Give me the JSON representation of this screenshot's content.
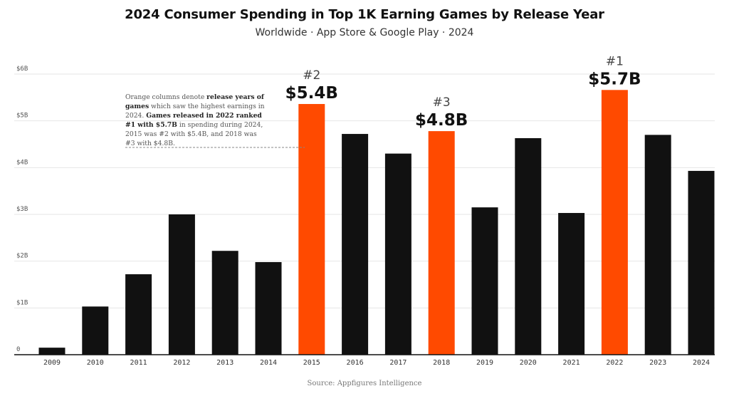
{
  "header": {
    "title": "2024 Consumer Spending in Top 1K Earning Games by Release Year",
    "subtitle": "Worldwide · App Store & Google Play · 2024"
  },
  "annotation": {
    "part1": "Orange columns denote ",
    "part2_bold": "release years of games",
    "part3": " which saw the highest earnings in 2024. ",
    "part4_bold": "Games released in 2022 ranked #1 with $5.7B",
    "part5": " in spending during 2024, 2015 was #2 with $5.4B, and 2018 was #3 with $4.8B."
  },
  "footer": {
    "source": "Source: Appfigures Intelligence"
  },
  "colors": {
    "default_bar": "#111111",
    "highlight_bar": "#ff4a00",
    "grid": "#e6e6e6",
    "axis": "#111111"
  },
  "chart_data": {
    "type": "bar",
    "title": "2024 Consumer Spending in Top 1K Earning Games by Release Year",
    "subtitle": "Worldwide · App Store & Google Play · 2024",
    "xlabel": "",
    "ylabel": "",
    "categories": [
      "2009",
      "2010",
      "2011",
      "2012",
      "2013",
      "2014",
      "2015",
      "2016",
      "2017",
      "2018",
      "2019",
      "2020",
      "2021",
      "2022",
      "2023",
      "2024"
    ],
    "series": [
      {
        "values": [
          0.15,
          1.03,
          1.72,
          3.0,
          2.22,
          1.98,
          5.36,
          4.72,
          4.3,
          4.78,
          3.15,
          4.63,
          3.03,
          5.66,
          4.7,
          3.93
        ]
      }
    ],
    "units": "USD billions",
    "ylim": [
      0,
      6
    ],
    "yticks": [
      0,
      1,
      2,
      3,
      4,
      5,
      6
    ],
    "ytick_labels": [
      "0",
      "$1B",
      "$2B",
      "$3B",
      "$4B",
      "$5B",
      "$6B"
    ],
    "grid": true,
    "legend": "none",
    "highlights": [
      {
        "category": "2022",
        "rank": "#1",
        "label": "$5.7B"
      },
      {
        "category": "2015",
        "rank": "#2",
        "label": "$5.4B"
      },
      {
        "category": "2018",
        "rank": "#3",
        "label": "$4.8B"
      }
    ]
  }
}
